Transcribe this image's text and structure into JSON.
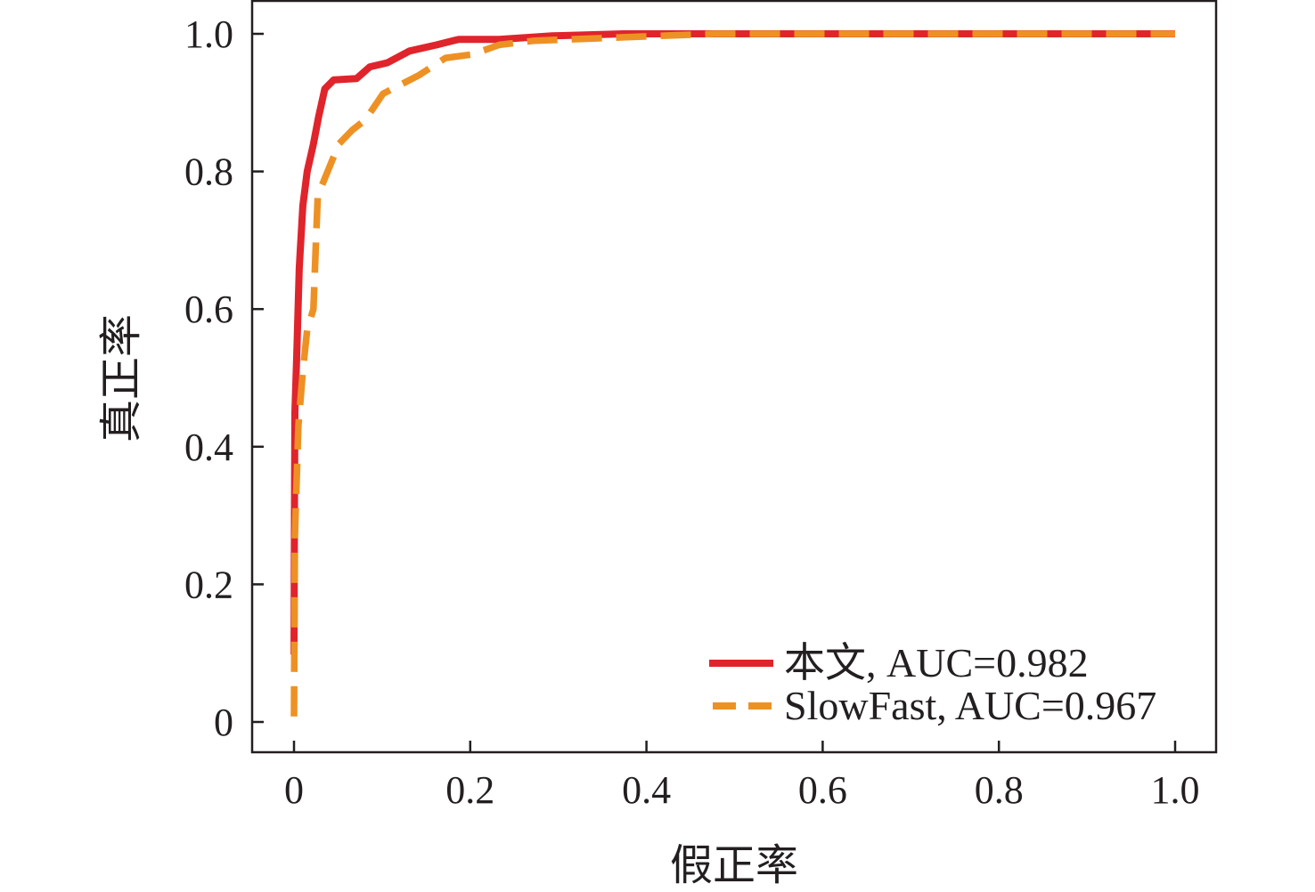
{
  "chart_data": {
    "type": "line",
    "title": "",
    "xlabel": "假正率",
    "ylabel": "真正率",
    "xlim": [
      0,
      1.0
    ],
    "ylim": [
      0,
      1.0
    ],
    "xticks": [
      "0",
      "0.2",
      "0.4",
      "0.6",
      "0.8",
      "1.0"
    ],
    "yticks": [
      "0",
      "0.2",
      "0.4",
      "0.6",
      "0.8",
      "1.0"
    ],
    "grid": false,
    "legend_position": "bottom-right",
    "series": [
      {
        "name": "本文, AUC=0.982",
        "color": "#e0242b",
        "style": "solid",
        "x": [
          0,
          0.0005,
          0.001,
          0.003,
          0.006,
          0.01,
          0.015,
          0.022,
          0.028,
          0.035,
          0.045,
          0.071,
          0.086,
          0.106,
          0.131,
          0.162,
          0.187,
          0.233,
          0.293,
          0.374,
          1.0
        ],
        "y": [
          0.098,
          0.3,
          0.45,
          0.53,
          0.66,
          0.75,
          0.8,
          0.84,
          0.88,
          0.92,
          0.933,
          0.935,
          0.952,
          0.958,
          0.975,
          0.984,
          0.992,
          0.992,
          0.997,
          1.0,
          1.0
        ]
      },
      {
        "name": "SlowFast, AUC=0.967",
        "color": "#ee9124",
        "style": "dashed",
        "x": [
          0,
          0.001,
          0.005,
          0.01,
          0.015,
          0.022,
          0.025,
          0.027,
          0.035,
          0.051,
          0.066,
          0.081,
          0.101,
          0.142,
          0.172,
          0.202,
          0.233,
          0.273,
          0.374,
          0.475,
          1.0
        ],
        "y": [
          0.008,
          0.27,
          0.43,
          0.51,
          0.57,
          0.6,
          0.7,
          0.765,
          0.79,
          0.84,
          0.86,
          0.875,
          0.913,
          0.94,
          0.965,
          0.97,
          0.984,
          0.99,
          0.995,
          1.0,
          1.0
        ]
      }
    ]
  }
}
